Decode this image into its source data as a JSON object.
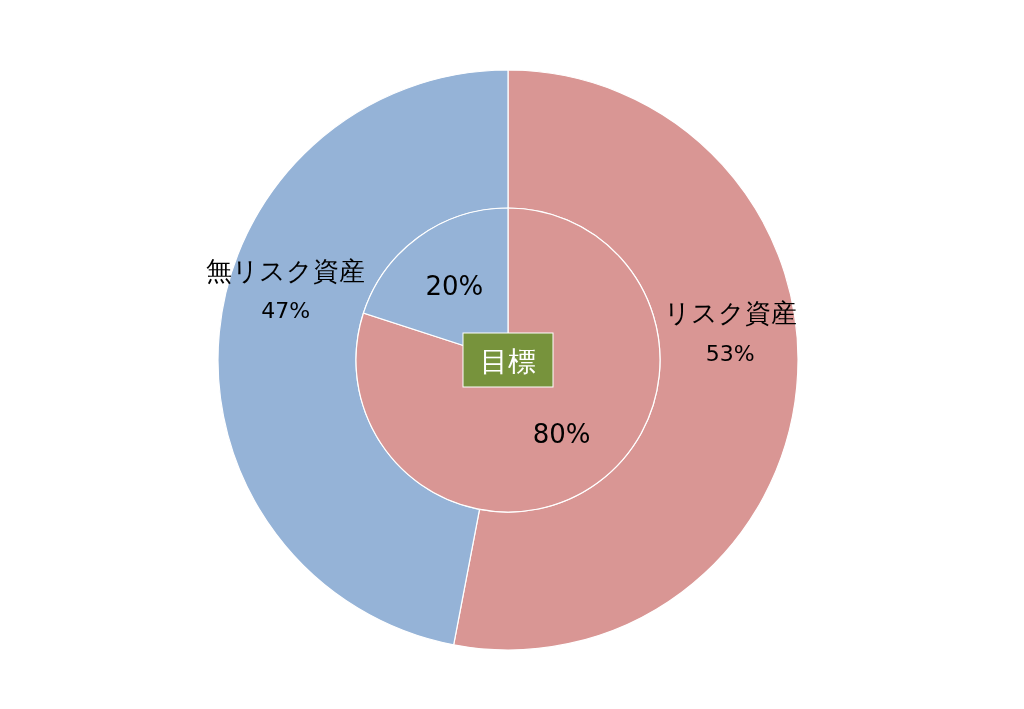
{
  "chart_data": [
    {
      "type": "donut",
      "categories": [
        "リスク資産",
        "無リスク資産"
      ],
      "values": [
        53,
        47
      ],
      "colors": [
        "#d99694",
        "#95b3d7"
      ],
      "value_labels": [
        "53%",
        "47%"
      ]
    },
    {
      "type": "pie",
      "title": "目標",
      "categories": [
        null,
        null
      ],
      "values": [
        80,
        20
      ],
      "colors": [
        "#d99694",
        "#95b3d7"
      ],
      "value_labels": [
        "80%",
        "20%"
      ]
    }
  ]
}
